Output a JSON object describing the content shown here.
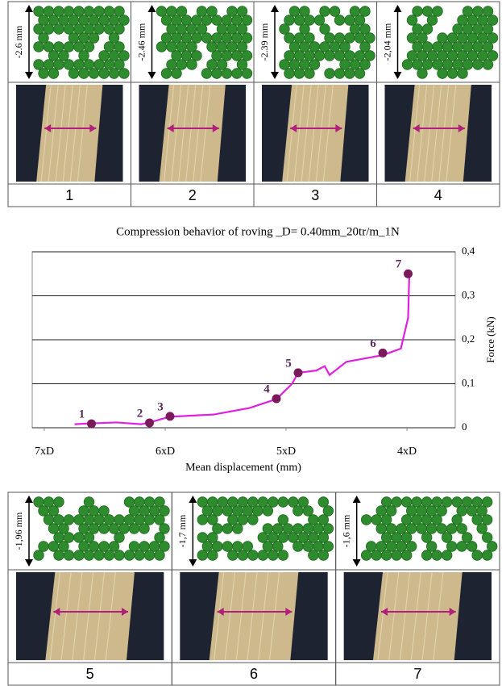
{
  "top_panels": [
    {
      "size": "-2.6 mm",
      "label": "1"
    },
    {
      "size": "-2.46 mm",
      "label": "2"
    },
    {
      "size": "-2.39 mm",
      "label": "3"
    },
    {
      "size": "-2,04 mm",
      "label": "4"
    }
  ],
  "bottom_panels": [
    {
      "size": "-1,96 mm",
      "label": "5"
    },
    {
      "size": "-1,7 mm",
      "label": "6"
    },
    {
      "size": "-1,6 mm",
      "label": "7"
    }
  ],
  "chart_data": {
    "type": "line",
    "title": "Compression behavior of roving _D= 0.40mm_20tr/m_1N",
    "x_label": "Mean displacement (mm)",
    "y_label": "Force (kN)",
    "xlim": [
      7.1,
      3.6
    ],
    "ylim": [
      0,
      0.4
    ],
    "xticks": [
      {
        "value": 7,
        "label": "7xD"
      },
      {
        "value": 6,
        "label": "6xD"
      },
      {
        "value": 5,
        "label": "5xD"
      },
      {
        "value": 4,
        "label": "4xD"
      }
    ],
    "yticks": [
      0,
      {
        "value": 0.1,
        "label": "0,1"
      },
      {
        "value": 0.2,
        "label": "0,2"
      },
      {
        "value": 0.3,
        "label": "0,3"
      },
      {
        "value": 0.4,
        "label": "0,4"
      }
    ],
    "grid": true,
    "series": [
      {
        "color": "#e020e0",
        "x": [
          6.75,
          6.61,
          6.4,
          6.2,
          6.13,
          5.96,
          5.6,
          5.3,
          5.08,
          4.95,
          4.9,
          4.75,
          4.68,
          4.64,
          4.5,
          4.2,
          4.05,
          3.99,
          3.98
        ],
        "values": [
          0.008,
          0.01,
          0.012,
          0.008,
          0.012,
          0.025,
          0.03,
          0.045,
          0.065,
          0.1,
          0.125,
          0.13,
          0.14,
          0.12,
          0.15,
          0.165,
          0.18,
          0.25,
          0.35
        ]
      }
    ],
    "points": {
      "color": "#7a1a5a",
      "labels": [
        "1",
        "2",
        "3",
        "4",
        "5",
        "6",
        "7"
      ],
      "x": [
        6.61,
        6.13,
        5.96,
        5.08,
        4.9,
        4.2,
        3.99
      ],
      "values": [
        0.009,
        0.011,
        0.026,
        0.066,
        0.125,
        0.17,
        0.35
      ]
    }
  }
}
